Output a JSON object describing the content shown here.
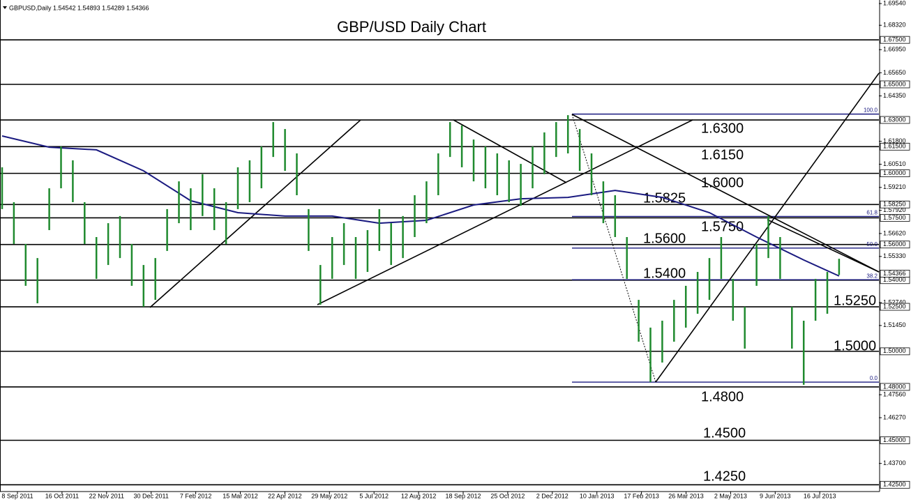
{
  "chart_data": {
    "type": "ohlc",
    "header": "GBPUSD,Daily  1.54542 1.54893 1.54289 1.54366",
    "title": "GBP/USD Daily Chart",
    "categories": [
      "8 Sep 2011",
      "16 Oct 2011",
      "22 Nov 2011",
      "30 Dec 2011",
      "7 Feb 2012",
      "15 Mar 2012",
      "22 Apr 2012",
      "29 May 2012",
      "5 Jul 2012",
      "12 Aug 2012",
      "18 Sep 2012",
      "25 Oct 2012",
      "2 Dec 2012",
      "10 Jan 2013",
      "17 Feb 2013",
      "26 Mar 2013",
      "2 May 2013",
      "9 Jun 2013",
      "16 Jul 2013"
    ],
    "bar_color": "#1f8a2e",
    "bars": {
      "high": [
        1.6034,
        1.5838,
        1.5603,
        1.5524,
        1.5916,
        1.6151,
        1.6073,
        1.5838,
        1.5642,
        1.572,
        1.576,
        1.5603,
        1.5485,
        1.5524,
        1.5799,
        1.5955,
        1.5916,
        1.5995,
        1.5916,
        1.5838,
        1.6034,
        1.6073,
        1.6151,
        1.6288,
        1.6249,
        1.6112,
        1.5799,
        1.5485,
        1.5642,
        1.572,
        1.5642,
        1.5681,
        1.5799,
        1.572,
        1.576,
        1.5877,
        1.5955,
        1.6112,
        1.6288,
        1.6269,
        1.619,
        1.6151,
        1.6112,
        1.6073,
        1.6053,
        1.6151,
        1.623,
        1.6288,
        1.6327,
        1.6249,
        1.6112,
        1.5955,
        1.5877,
        1.5642,
        1.5289,
        1.5133,
        1.5172,
        1.5289,
        1.5368,
        1.5446,
        1.5524,
        1.5642,
        1.5407,
        1.525,
        1.5603,
        1.576,
        1.5642,
        1.525,
        1.5172,
        1.5407,
        1.5446,
        1.552
      ],
      "low": [
        1.5799,
        1.5603,
        1.5368,
        1.527,
        1.5681,
        1.5916,
        1.5838,
        1.5603,
        1.5407,
        1.5485,
        1.5524,
        1.5368,
        1.525,
        1.5289,
        1.5564,
        1.572,
        1.5681,
        1.576,
        1.5681,
        1.5603,
        1.5799,
        1.5838,
        1.5916,
        1.6092,
        1.6014,
        1.5877,
        1.5564,
        1.5262,
        1.5407,
        1.5485,
        1.5407,
        1.5446,
        1.5564,
        1.5485,
        1.5524,
        1.5642,
        1.572,
        1.5877,
        1.6092,
        1.6034,
        1.5955,
        1.5916,
        1.5877,
        1.5838,
        1.5818,
        1.5916,
        1.5995,
        1.6092,
        1.6112,
        1.6014,
        1.5877,
        1.572,
        1.5642,
        1.5407,
        1.5054,
        1.4827,
        1.4937,
        1.5054,
        1.5133,
        1.5211,
        1.5289,
        1.5407,
        1.5172,
        1.5015,
        1.5368,
        1.5524,
        1.5407,
        1.5015,
        1.4812,
        1.5172,
        1.5211,
        1.5429
      ]
    },
    "moving_average": {
      "color": "#1a1a80",
      "x": [
        0,
        4,
        8,
        12,
        16,
        20,
        24,
        28,
        32,
        36,
        40,
        44,
        48,
        52,
        56,
        60,
        64,
        68,
        71
      ],
      "values": [
        1.621,
        1.6147,
        1.6132,
        1.6014,
        1.5846,
        1.5779,
        1.576,
        1.576,
        1.572,
        1.5736,
        1.5822,
        1.5857,
        1.5865,
        1.5904,
        1.5865,
        1.5779,
        1.5642,
        1.5513,
        1.5423
      ]
    },
    "levels": [
      {
        "value": 1.675,
        "axis_label": "1.67500"
      },
      {
        "value": 1.65,
        "axis_label": "1.65000"
      },
      {
        "value": 1.63,
        "axis_label": "1.63000",
        "label": "1.6300"
      },
      {
        "value": 1.615,
        "axis_label": "1.61500",
        "label": "1.6150"
      },
      {
        "value": 1.6,
        "axis_label": "1.60000",
        "label": "1.6000"
      },
      {
        "value": 1.5825,
        "axis_label": "1.58250",
        "label": "1.5825"
      },
      {
        "value": 1.575,
        "axis_label": "1.57500",
        "label": "1.5750"
      },
      {
        "value": 1.56,
        "axis_label": "1.56000",
        "label": "1.5600"
      },
      {
        "value": 1.54,
        "axis_label": "1.54000",
        "label": "1.5400"
      },
      {
        "value": 1.525,
        "axis_label": "1.52500",
        "label": "1.5250"
      },
      {
        "value": 1.5,
        "axis_label": "1.50000",
        "label": "1.5000"
      },
      {
        "value": 1.48,
        "axis_label": "1.48000",
        "label": "1.4800"
      },
      {
        "value": 1.45,
        "axis_label": "1.45000",
        "label": "1.4500"
      },
      {
        "value": 1.425,
        "axis_label": "1.42500",
        "label": "1.4250"
      }
    ],
    "fibonacci": {
      "color": "#1a1a80",
      "price_high": 1.6333,
      "price_low": 1.4827,
      "levels": [
        {
          "value": 100,
          "label": "100.0"
        },
        {
          "value": 61.8,
          "label": "61.8"
        },
        {
          "value": 50,
          "label": "50.0"
        },
        {
          "value": 38.2,
          "label": "38.2"
        },
        {
          "value": 0,
          "label": "0.0"
        }
      ]
    },
    "current_price": 1.54366,
    "ylim": [
      1.4212,
      1.6974
    ],
    "yticks": [
      {
        "value": 1.6954,
        "label": "1.69540"
      },
      {
        "value": 1.6832,
        "label": "1.68320"
      },
      {
        "value": 1.6695,
        "label": "1.66950"
      },
      {
        "value": 1.6565,
        "label": "1.65650"
      },
      {
        "value": 1.6435,
        "label": "1.64350"
      },
      {
        "value": 1.618,
        "label": "1.61800"
      },
      {
        "value": 1.6051,
        "label": "1.60510"
      },
      {
        "value": 1.5921,
        "label": "1.59210"
      },
      {
        "value": 1.5792,
        "label": "1.57920"
      },
      {
        "value": 1.5662,
        "label": "1.56620"
      },
      {
        "value": 1.5533,
        "label": "1.55330"
      },
      {
        "value": 1.5274,
        "label": "1.52740"
      },
      {
        "value": 1.5145,
        "label": "1.51450"
      },
      {
        "value": 1.4756,
        "label": "1.47560"
      },
      {
        "value": 1.4627,
        "label": "1.46270"
      },
      {
        "value": 1.437,
        "label": "1.43700"
      }
    ]
  }
}
